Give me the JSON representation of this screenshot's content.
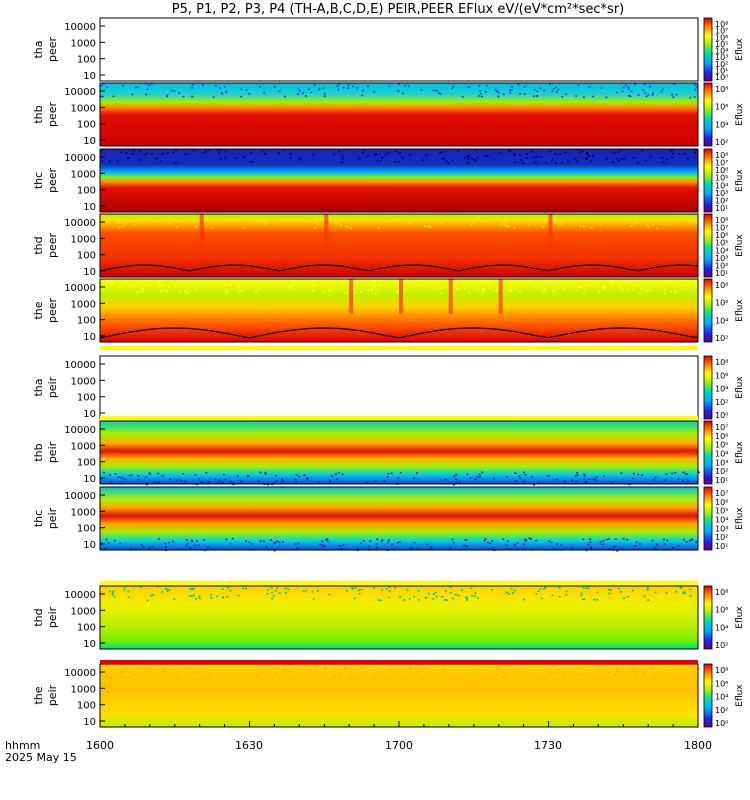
{
  "title": "P5, P1, P2, P3, P4 (TH-A,B,C,D,E) PEIR,PEER EFlux eV/(eV*cm²*sec*sr)",
  "x_axis": {
    "tick_labels": [
      "1600",
      "1630",
      "1700",
      "1730",
      "1800"
    ],
    "corner_label_1": "hhmm",
    "corner_label_2": "2025 May 15"
  },
  "colorbar_label": "Eflux",
  "chart_data": [
    {
      "type": "heatmap",
      "ylabel_1": "tha",
      "ylabel_2": "peer",
      "yticks": [
        "10000",
        "1000",
        "100",
        "10"
      ],
      "cbar_ticks": [
        "10⁸",
        "10⁷",
        "10⁶",
        "10⁵",
        "10⁴",
        "10³",
        "10²",
        "10¹",
        "10⁰"
      ],
      "palette": "empty"
    },
    {
      "type": "heatmap",
      "ylabel_1": "thb",
      "ylabel_2": "peer",
      "yticks": [
        "10000",
        "1000",
        "100",
        "10"
      ],
      "cbar_ticks": [
        "10⁸",
        "10⁶",
        "10⁴",
        "10²"
      ],
      "palette": "bands_b"
    },
    {
      "type": "heatmap",
      "ylabel_1": "thc",
      "ylabel_2": "peer",
      "yticks": [
        "10000",
        "1000",
        "100",
        "10"
      ],
      "cbar_ticks": [
        "10⁸",
        "10⁷",
        "10⁶",
        "10⁵",
        "10⁴",
        "10³",
        "10²",
        "10¹"
      ],
      "palette": "bands_c"
    },
    {
      "type": "heatmap",
      "ylabel_1": "thd",
      "ylabel_2": "peer",
      "yticks": [
        "10000",
        "1000",
        "100",
        "10"
      ],
      "cbar_ticks": [
        "10⁸",
        "10⁷",
        "10⁶",
        "10⁵",
        "10⁴",
        "10³",
        "10²",
        "10¹"
      ],
      "palette": "warm_d"
    },
    {
      "type": "heatmap",
      "ylabel_1": "the",
      "ylabel_2": "peer",
      "yticks": [
        "10000",
        "1000",
        "100",
        "10"
      ],
      "cbar_ticks": [
        "10⁸",
        "10⁶",
        "10⁴",
        "10²"
      ],
      "palette": "warm_e"
    },
    {
      "type": "heatmap",
      "ylabel_1": "tha",
      "ylabel_2": "peir",
      "yticks": [
        "10000",
        "1000",
        "100",
        "10"
      ],
      "cbar_ticks": [
        "10⁸",
        "10⁶",
        "10⁴",
        "10²",
        "10⁰"
      ],
      "palette": "empty"
    },
    {
      "type": "heatmap",
      "ylabel_1": "thb",
      "ylabel_2": "peir",
      "yticks": [
        "10000",
        "1000",
        "100",
        "10"
      ],
      "cbar_ticks": [
        "10⁷",
        "10⁶",
        "10⁵",
        "10⁴",
        "10³",
        "10²",
        "10¹"
      ],
      "palette": "ion_b"
    },
    {
      "type": "heatmap",
      "ylabel_1": "thc",
      "ylabel_2": "peir",
      "yticks": [
        "10000",
        "1000",
        "100",
        "10"
      ],
      "cbar_ticks": [
        "10⁷",
        "10⁶",
        "10⁵",
        "10⁴",
        "10³",
        "10²",
        "10¹"
      ],
      "palette": "ion_c"
    },
    {
      "type": "heatmap",
      "ylabel_1": "thd",
      "ylabel_2": "peir",
      "yticks": [
        "10000",
        "1000",
        "100",
        "10"
      ],
      "cbar_ticks": [
        "10⁸",
        "10⁶",
        "10⁴",
        "10²"
      ],
      "palette": "ion_d"
    },
    {
      "type": "heatmap",
      "ylabel_1": "the",
      "ylabel_2": "peir",
      "yticks": [
        "10000",
        "1000",
        "100",
        "10"
      ],
      "cbar_ticks": [
        "10⁸",
        "10⁶",
        "10⁴",
        "10²",
        "10⁰"
      ],
      "palette": "ion_e"
    }
  ]
}
